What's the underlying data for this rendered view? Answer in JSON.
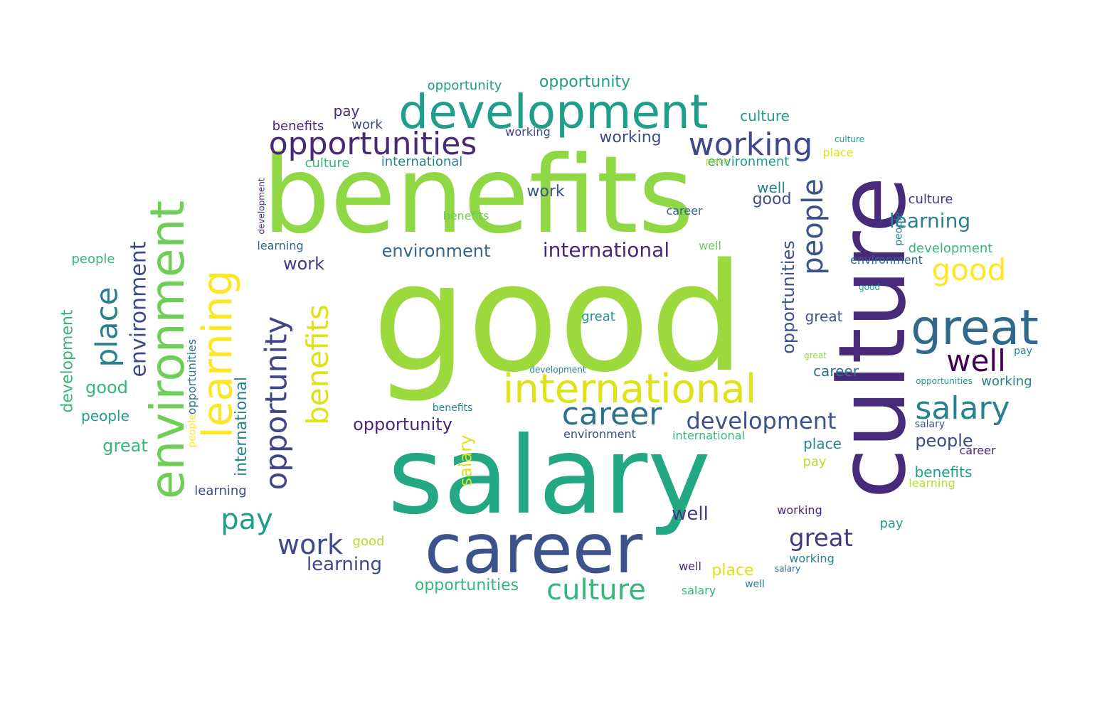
{
  "palette": {
    "light_green": "#8fd744",
    "yellow_green": "#b5de2b",
    "yellow": "#dde318",
    "teal": "#23a884",
    "green": "#35b779",
    "sea": "#1f9e89",
    "cyan_blue": "#26828e",
    "blue": "#31688e",
    "slate": "#3b528b",
    "indigo": "#443983",
    "purple": "#482878",
    "dark_purple": "#440154",
    "lime": "#6ece58"
  },
  "words": [
    {
      "text": "good",
      "color": "#9bd93c"
    },
    {
      "text": "benefits",
      "color": "#8fd744"
    },
    {
      "text": "salary",
      "color": "#23a884"
    },
    {
      "text": "culture",
      "color": "#472a7a"
    },
    {
      "text": "career",
      "color": "#3b528b"
    },
    {
      "text": "development",
      "color": "#1f9e89"
    },
    {
      "text": "international",
      "color": "#dde318"
    },
    {
      "text": "opportunities",
      "color": "#482878"
    },
    {
      "text": "environment",
      "color": "#6ece58"
    },
    {
      "text": "learning",
      "color": "#fde725"
    },
    {
      "text": "great",
      "color": "#31688e"
    },
    {
      "text": "working",
      "color": "#3e4989"
    },
    {
      "text": "opportunity",
      "color": "#414487"
    },
    {
      "text": "place",
      "color": "#26828e"
    },
    {
      "text": "benefits",
      "color": "#dde318"
    },
    {
      "text": "people",
      "color": "#3b528b"
    },
    {
      "text": "good",
      "color": "#fde725"
    },
    {
      "text": "well",
      "color": "#440154"
    },
    {
      "text": "salary",
      "color": "#26828e"
    },
    {
      "text": "career",
      "color": "#2c728e"
    },
    {
      "text": "development",
      "color": "#3b528b"
    },
    {
      "text": "international",
      "color": "#482878"
    },
    {
      "text": "culture",
      "color": "#35b779"
    },
    {
      "text": "pay",
      "color": "#1f9e89"
    },
    {
      "text": "work",
      "color": "#3e4989"
    },
    {
      "text": "great",
      "color": "#443983"
    },
    {
      "text": "environment",
      "color": "#31688e"
    },
    {
      "text": "environment",
      "color": "#3e4989"
    },
    {
      "text": "learning",
      "color": "#3e4989"
    },
    {
      "text": "opportunity",
      "color": "#482878"
    },
    {
      "text": "salary",
      "color": "#dde318"
    },
    {
      "text": "benefits",
      "color": "#6ece58"
    },
    {
      "text": "opportunities",
      "color": "#3b528b"
    },
    {
      "text": "people",
      "color": "#3e4989"
    },
    {
      "text": "development",
      "color": "#35b779"
    },
    {
      "text": "opportunity",
      "color": "#1f9e89"
    },
    {
      "text": "opportunity",
      "color": "#1f9e89"
    },
    {
      "text": "culture",
      "color": "#1f9e89"
    },
    {
      "text": "working",
      "color": "#3e4989"
    },
    {
      "text": "pay",
      "color": "#482878"
    },
    {
      "text": "international",
      "color": "#26828e"
    },
    {
      "text": "culture",
      "color": "#35b779"
    },
    {
      "text": "environment",
      "color": "#1f9e89"
    },
    {
      "text": "learning",
      "color": "#26828e"
    },
    {
      "text": "opportunities",
      "color": "#2c728e"
    },
    {
      "text": "career",
      "color": "#2c728e"
    },
    {
      "text": "great",
      "color": "#3b528b"
    },
    {
      "text": "people",
      "color": "#1f9e89"
    },
    {
      "text": "place",
      "color": "#26828e"
    },
    {
      "text": "benefits",
      "color": "#1f9e89"
    },
    {
      "text": "well",
      "color": "#443983"
    },
    {
      "text": "good",
      "color": "#3b528b"
    },
    {
      "text": "great",
      "color": "#35b779"
    },
    {
      "text": "good",
      "color": "#35b779"
    },
    {
      "text": "people",
      "color": "#35b779"
    },
    {
      "text": "development",
      "color": "#35b779"
    },
    {
      "text": "work",
      "color": "#3b528b"
    },
    {
      "text": "work",
      "color": "#3e4989"
    },
    {
      "text": "work",
      "color": "#443983"
    },
    {
      "text": "benefits",
      "color": "#482878"
    },
    {
      "text": "learning",
      "color": "#3e4989"
    },
    {
      "text": "learning",
      "color": "#31688e"
    },
    {
      "text": "pay",
      "color": "#b5de2b"
    },
    {
      "text": "pay",
      "color": "#1f9e89"
    },
    {
      "text": "pay",
      "color": "#26828e"
    },
    {
      "text": "great",
      "color": "#21918c"
    },
    {
      "text": "well",
      "color": "#26828e"
    },
    {
      "text": "well",
      "color": "#482878"
    },
    {
      "text": "place",
      "color": "#b5de2b"
    },
    {
      "text": "place",
      "color": "#dde318"
    },
    {
      "text": "place",
      "color": "#dde318"
    },
    {
      "text": "career",
      "color": "#482878"
    },
    {
      "text": "career",
      "color": "#31688e"
    },
    {
      "text": "working",
      "color": "#3e4989"
    },
    {
      "text": "working",
      "color": "#26828e"
    },
    {
      "text": "working",
      "color": "#482878"
    },
    {
      "text": "working",
      "color": "#26828e"
    },
    {
      "text": "benefits",
      "color": "#26828e"
    },
    {
      "text": "salary",
      "color": "#3b528b"
    },
    {
      "text": "salary",
      "color": "#35b779"
    },
    {
      "text": "salary",
      "color": "#31688e"
    },
    {
      "text": "culture",
      "color": "#443983"
    },
    {
      "text": "culture",
      "color": "#1f9e89"
    },
    {
      "text": "international",
      "color": "#35b779"
    },
    {
      "text": "international",
      "color": "#26828e"
    },
    {
      "text": "environment",
      "color": "#3e4989"
    },
    {
      "text": "environment",
      "color": "#31688e"
    },
    {
      "text": "development",
      "color": "#26828e"
    },
    {
      "text": "development",
      "color": "#482878"
    },
    {
      "text": "opportunities",
      "color": "#35b779"
    },
    {
      "text": "opportunities",
      "color": "#1f9e89"
    },
    {
      "text": "people",
      "color": "#26828e"
    },
    {
      "text": "people",
      "color": "#fde725"
    },
    {
      "text": "good",
      "color": "#1f9e89"
    },
    {
      "text": "good",
      "color": "#b5de2b"
    },
    {
      "text": "great",
      "color": "#8fd744"
    },
    {
      "text": "learning",
      "color": "#b5de2b"
    },
    {
      "text": "well",
      "color": "#6ece58"
    },
    {
      "text": "well",
      "color": "#26828e"
    }
  ]
}
